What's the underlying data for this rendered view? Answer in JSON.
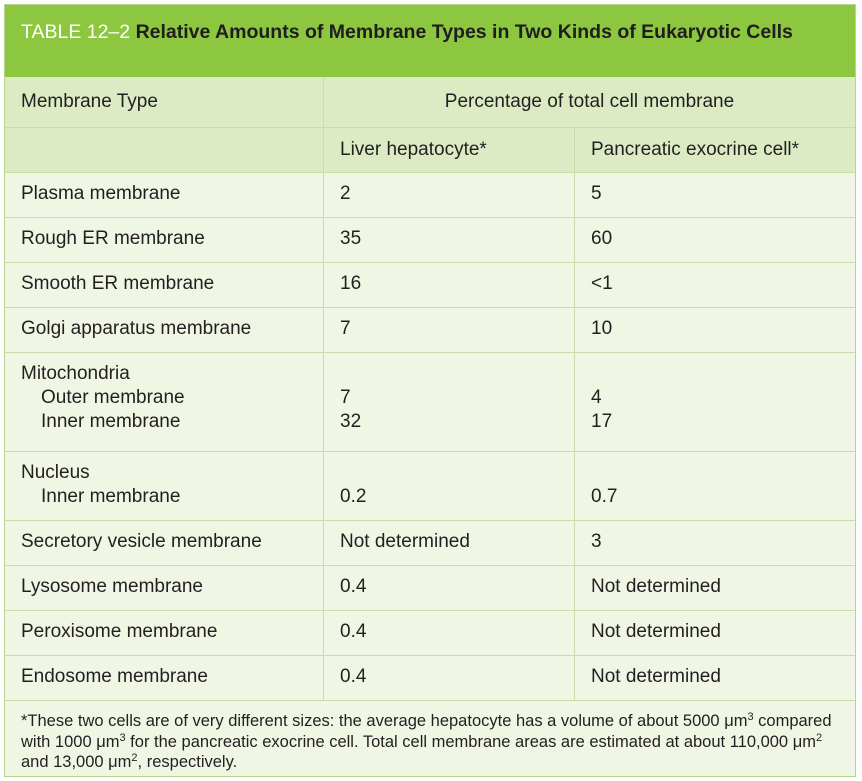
{
  "title": {
    "label": "TABLE 12–2",
    "text": "Relative Amounts of Membrane Types in Two Kinds of Eukaryotic Cells"
  },
  "header": {
    "col1": "Membrane Type",
    "span": "Percentage of total cell membrane",
    "col2": "Liver hepatocyte*",
    "col3": "Pancreatic exocrine cell*"
  },
  "rows": [
    {
      "type": "Plasma membrane",
      "liver": "2",
      "pancreas": "5"
    },
    {
      "type": "Rough ER membrane",
      "liver": "35",
      "pancreas": "60"
    },
    {
      "type": "Smooth ER membrane",
      "liver": "16",
      "pancreas": "<1"
    },
    {
      "type": "Golgi apparatus membrane",
      "liver": "7",
      "pancreas": "10"
    },
    {
      "type": "Mitochondria",
      "sub": [
        {
          "type": "Outer membrane",
          "liver": "7",
          "pancreas": "4"
        },
        {
          "type": "Inner membrane",
          "liver": "32",
          "pancreas": "17"
        }
      ]
    },
    {
      "type": "Nucleus",
      "sub": [
        {
          "type": "Inner membrane",
          "liver": "0.2",
          "pancreas": "0.7"
        }
      ]
    },
    {
      "type": "Secretory vesicle membrane",
      "liver": "Not determined",
      "pancreas": "3"
    },
    {
      "type": "Lysosome membrane",
      "liver": "0.4",
      "pancreas": "Not determined"
    },
    {
      "type": "Peroxisome membrane",
      "liver": "0.4",
      "pancreas": "Not determined"
    },
    {
      "type": "Endosome membrane",
      "liver": "0.4",
      "pancreas": "Not determined"
    }
  ],
  "footnote": {
    "p1": "*These two cells are of very different sizes: the average hepatocyte has a volume of about 5000 μm",
    "sup1": "3",
    "p2": " compared with 1000 μm",
    "sup2": "3",
    "p3": " for the pancreatic exocrine cell. Total cell membrane areas are estimated at about 110,000 μm",
    "sup3": "2",
    "p4": " and 13,000 μm",
    "sup4": "2",
    "p5": ", respectively."
  },
  "colors": {
    "title_bar": "#8dc63f",
    "header_bg": "#dcebc4",
    "body_bg": "#f0f6e4",
    "rule": "#c9dca9"
  }
}
